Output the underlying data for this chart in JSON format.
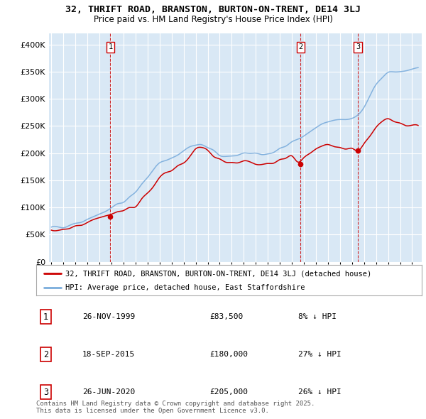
{
  "title": "32, THRIFT ROAD, BRANSTON, BURTON-ON-TRENT, DE14 3LJ",
  "subtitle": "Price paid vs. HM Land Registry's House Price Index (HPI)",
  "ylim": [
    0,
    420000
  ],
  "yticks": [
    0,
    50000,
    100000,
    150000,
    200000,
    250000,
    300000,
    350000,
    400000
  ],
  "xlim_start": 1994.8,
  "xlim_end": 2025.8,
  "plot_bg_color": "#d9e8f5",
  "grid_color": "#ffffff",
  "line_color_hpi": "#7aacdc",
  "line_color_price": "#cc0000",
  "transactions": [
    {
      "num": 1,
      "date": "26-NOV-1999",
      "price": 83500,
      "pct": "8%",
      "x": 1999.9
    },
    {
      "num": 2,
      "date": "18-SEP-2015",
      "price": 180000,
      "pct": "27%",
      "x": 2015.72
    },
    {
      "num": 3,
      "date": "26-JUN-2020",
      "price": 205000,
      "pct": "26%",
      "x": 2020.49
    }
  ],
  "legend_label_price": "32, THRIFT ROAD, BRANSTON, BURTON-ON-TRENT, DE14 3LJ (detached house)",
  "legend_label_hpi": "HPI: Average price, detached house, East Staffordshire",
  "footnote": "Contains HM Land Registry data © Crown copyright and database right 2025.\nThis data is licensed under the Open Government Licence v3.0.",
  "title_fontsize": 9.5,
  "subtitle_fontsize": 8.5,
  "tick_fontsize": 8,
  "legend_fontsize": 7.5,
  "table_fontsize": 8,
  "footnote_fontsize": 6.5,
  "hpi_x": [
    1995.0,
    1995.5,
    1996.0,
    1996.5,
    1997.0,
    1997.5,
    1998.0,
    1998.5,
    1999.0,
    1999.5,
    2000.0,
    2000.5,
    2001.0,
    2001.5,
    2002.0,
    2002.5,
    2003.0,
    2003.5,
    2004.0,
    2004.5,
    2005.0,
    2005.5,
    2006.0,
    2006.5,
    2007.0,
    2007.5,
    2008.0,
    2008.5,
    2009.0,
    2009.5,
    2010.0,
    2010.5,
    2011.0,
    2011.5,
    2012.0,
    2012.5,
    2013.0,
    2013.5,
    2014.0,
    2014.5,
    2015.0,
    2015.5,
    2016.0,
    2016.5,
    2017.0,
    2017.5,
    2018.0,
    2018.5,
    2019.0,
    2019.5,
    2020.0,
    2020.5,
    2021.0,
    2021.5,
    2022.0,
    2022.5,
    2023.0,
    2023.5,
    2024.0,
    2024.5,
    2025.0,
    2025.5
  ],
  "hpi_y": [
    62000,
    63500,
    65000,
    67000,
    70000,
    74000,
    78000,
    83000,
    88000,
    93000,
    99000,
    105000,
    111000,
    118000,
    128000,
    142000,
    157000,
    170000,
    180000,
    188000,
    194000,
    199000,
    204000,
    208000,
    213000,
    213000,
    210000,
    203000,
    196000,
    193000,
    195000,
    197000,
    200000,
    200000,
    198000,
    197000,
    198000,
    202000,
    207000,
    214000,
    220000,
    226000,
    233000,
    240000,
    248000,
    254000,
    258000,
    260000,
    261000,
    262000,
    264000,
    270000,
    285000,
    305000,
    325000,
    338000,
    345000,
    348000,
    350000,
    352000,
    355000,
    358000
  ],
  "price_x": [
    1995.0,
    1995.5,
    1996.0,
    1996.5,
    1997.0,
    1997.5,
    1998.0,
    1998.5,
    1999.0,
    1999.5,
    2000.0,
    2000.5,
    2001.0,
    2001.5,
    2002.0,
    2002.5,
    2003.0,
    2003.5,
    2004.0,
    2004.5,
    2005.0,
    2005.5,
    2006.0,
    2006.5,
    2007.0,
    2007.5,
    2008.0,
    2008.5,
    2009.0,
    2009.5,
    2010.0,
    2010.5,
    2011.0,
    2011.5,
    2012.0,
    2012.5,
    2013.0,
    2013.5,
    2014.0,
    2014.5,
    2015.0,
    2015.5,
    2016.0,
    2016.5,
    2017.0,
    2017.5,
    2018.0,
    2018.5,
    2019.0,
    2019.5,
    2020.0,
    2020.5,
    2021.0,
    2021.5,
    2022.0,
    2022.5,
    2023.0,
    2023.5,
    2024.0,
    2024.5,
    2025.0,
    2025.5
  ],
  "price_y": [
    57000,
    58500,
    60000,
    62000,
    65000,
    69000,
    73000,
    78000,
    81000,
    84000,
    88000,
    91000,
    94000,
    97000,
    103000,
    115000,
    128000,
    140000,
    153000,
    162000,
    170000,
    177000,
    182000,
    196000,
    208000,
    210000,
    205000,
    196000,
    188000,
    183000,
    183000,
    183000,
    185000,
    183000,
    180000,
    179000,
    180000,
    184000,
    188000,
    193000,
    196000,
    183000,
    192000,
    200000,
    208000,
    212000,
    215000,
    213000,
    210000,
    208000,
    206000,
    205000,
    218000,
    232000,
    248000,
    258000,
    263000,
    260000,
    256000,
    252000,
    250000,
    248000
  ]
}
